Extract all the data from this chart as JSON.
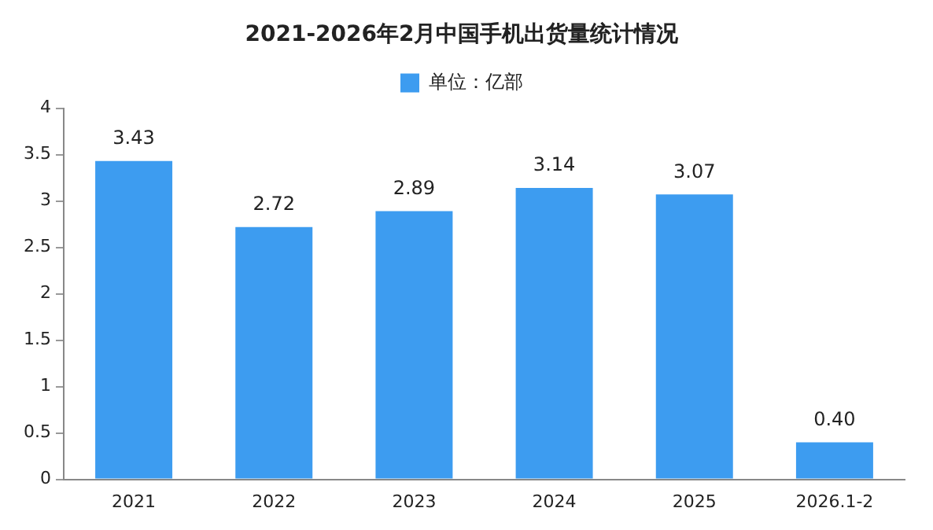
{
  "chart_data": {
    "type": "bar",
    "title": "2021-2026年2月中国手机出货量统计情况",
    "categories": [
      "2021",
      "2022",
      "2023",
      "2024",
      "2025",
      "2026.1-2"
    ],
    "series": [
      {
        "name": "单位：亿部",
        "color": "#3d9cf0",
        "values": [
          3.43,
          2.72,
          2.89,
          3.14,
          3.07,
          0.4
        ],
        "value_labels": [
          "3.43",
          "2.72",
          "2.89",
          "3.14",
          "3.07",
          "0.40"
        ]
      }
    ],
    "ylim": [
      0,
      4
    ],
    "yticks": [
      0,
      0.5,
      1,
      1.5,
      2,
      2.5,
      3,
      3.5,
      4
    ],
    "grid": false,
    "legend": "top"
  }
}
